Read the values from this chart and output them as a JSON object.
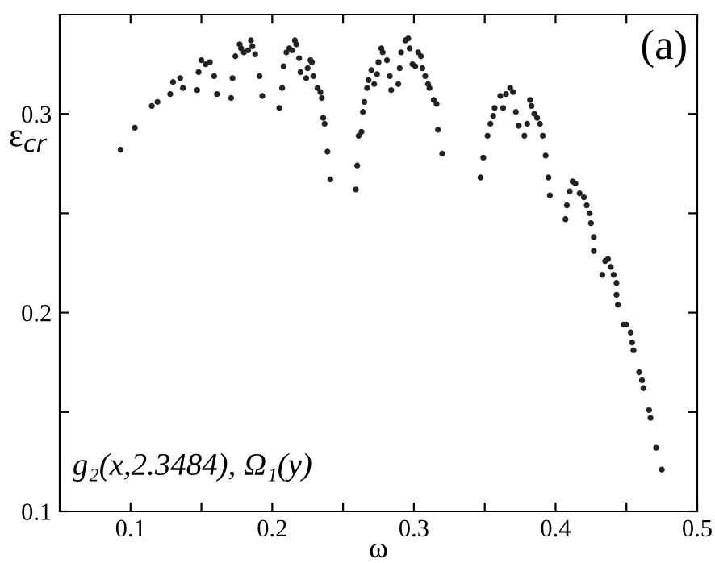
{
  "chart_data": {
    "type": "scatter",
    "xlabel": "ω",
    "ylabel": "ε$_{cr}$",
    "annotations": [
      "(a)",
      "g₂(x,2.3484), Ω₁(y)"
    ],
    "xlim": [
      0.05,
      0.5
    ],
    "ylim": [
      0.1,
      0.35
    ],
    "xticks": [
      0.1,
      {
        "value": 0.15,
        "label": null
      },
      0.2,
      {
        "value": 0.25,
        "label": null
      },
      0.3,
      {
        "value": 0.35,
        "label": null
      },
      0.4,
      {
        "value": 0.45,
        "label": null
      },
      0.5
    ],
    "yticks": [
      0.1,
      {
        "value": 0.15,
        "label": null
      },
      0.2,
      {
        "value": 0.25,
        "label": null
      },
      0.3
    ],
    "grid": false,
    "legend": false,
    "marker": "circle",
    "series": [
      {
        "color": "#222222",
        "x": [
          0.093,
          0.103,
          0.115,
          0.119,
          0.128,
          0.13,
          0.135,
          0.137,
          0.147,
          0.148,
          0.15,
          0.153,
          0.156,
          0.159,
          0.161,
          0.171,
          0.172,
          0.174,
          0.177,
          0.178,
          0.18,
          0.183,
          0.185,
          0.186,
          0.188,
          0.191,
          0.193,
          0.205,
          0.207,
          0.208,
          0.21,
          0.212,
          0.214,
          0.216,
          0.217,
          0.219,
          0.22,
          0.224,
          0.225,
          0.227,
          0.228,
          0.229,
          0.232,
          0.234,
          0.235,
          0.236,
          0.237,
          0.239,
          0.241,
          0.259,
          0.26,
          0.261,
          0.263,
          0.264,
          0.265,
          0.267,
          0.268,
          0.27,
          0.272,
          0.274,
          0.275,
          0.277,
          0.278,
          0.281,
          0.283,
          0.284,
          0.289,
          0.29,
          0.291,
          0.294,
          0.296,
          0.297,
          0.299,
          0.301,
          0.303,
          0.305,
          0.306,
          0.308,
          0.31,
          0.311,
          0.314,
          0.316,
          0.317,
          0.32,
          0.347,
          0.349,
          0.352,
          0.354,
          0.356,
          0.357,
          0.361,
          0.363,
          0.365,
          0.368,
          0.37,
          0.372,
          0.374,
          0.378,
          0.38,
          0.382,
          0.383,
          0.385,
          0.387,
          0.389,
          0.391,
          0.393,
          0.395,
          0.396,
          0.407,
          0.408,
          0.41,
          0.412,
          0.414,
          0.417,
          0.42,
          0.422,
          0.424,
          0.425,
          0.427,
          0.427,
          0.433,
          0.435,
          0.437,
          0.439,
          0.441,
          0.443,
          0.443,
          0.444,
          0.448,
          0.45,
          0.453,
          0.454,
          0.455,
          0.459,
          0.461,
          0.462,
          0.466,
          0.467,
          0.471,
          0.475
        ],
        "values": [
          0.282,
          0.293,
          0.304,
          0.306,
          0.31,
          0.316,
          0.318,
          0.313,
          0.312,
          0.321,
          0.327,
          0.325,
          0.326,
          0.319,
          0.31,
          0.308,
          0.318,
          0.329,
          0.335,
          0.333,
          0.331,
          0.332,
          0.337,
          0.334,
          0.33,
          0.319,
          0.309,
          0.303,
          0.313,
          0.324,
          0.331,
          0.333,
          0.332,
          0.337,
          0.335,
          0.328,
          0.321,
          0.318,
          0.323,
          0.327,
          0.326,
          0.319,
          0.313,
          0.311,
          0.308,
          0.298,
          0.295,
          0.281,
          0.267,
          0.262,
          0.274,
          0.289,
          0.291,
          0.301,
          0.306,
          0.313,
          0.317,
          0.322,
          0.315,
          0.32,
          0.326,
          0.333,
          0.331,
          0.327,
          0.319,
          0.312,
          0.315,
          0.323,
          0.331,
          0.337,
          0.338,
          0.333,
          0.325,
          0.324,
          0.331,
          0.329,
          0.323,
          0.319,
          0.315,
          0.313,
          0.307,
          0.305,
          0.292,
          0.28,
          0.268,
          0.278,
          0.289,
          0.295,
          0.299,
          0.303,
          0.309,
          0.303,
          0.31,
          0.313,
          0.311,
          0.301,
          0.294,
          0.289,
          0.295,
          0.307,
          0.304,
          0.3,
          0.298,
          0.295,
          0.289,
          0.279,
          0.268,
          0.259,
          0.247,
          0.254,
          0.261,
          0.266,
          0.265,
          0.26,
          0.258,
          0.254,
          0.25,
          0.245,
          0.238,
          0.231,
          0.219,
          0.226,
          0.227,
          0.223,
          0.219,
          0.215,
          0.209,
          0.204,
          0.194,
          0.194,
          0.19,
          0.185,
          0.181,
          0.17,
          0.166,
          0.162,
          0.151,
          0.147,
          0.132,
          0.121
        ]
      }
    ]
  }
}
